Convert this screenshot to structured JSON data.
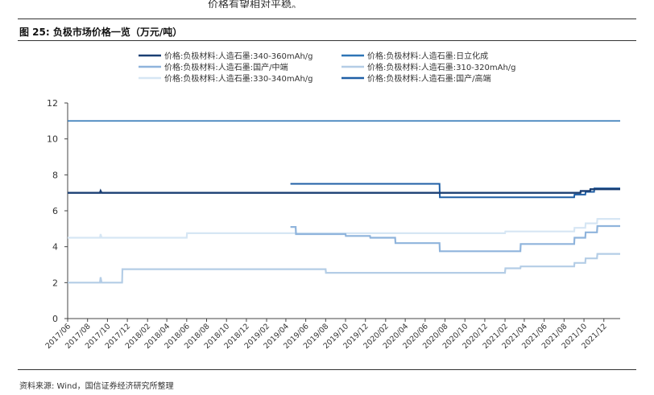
{
  "top_note": "价格有望相对平稳。",
  "figure_title": "图 25:  负极市场价格一览（万元/吨）",
  "source": "资料来源: Wind，国信证券经济研究所整理",
  "chart_data": {
    "type": "line",
    "title": "",
    "xlabel": "",
    "ylabel": "",
    "ylim": [
      0,
      12
    ],
    "yticks": [
      0,
      2,
      4,
      6,
      8,
      10,
      12
    ],
    "x_range": [
      "2017-06-01",
      "2022-01-20"
    ],
    "x_ticks": [
      "2017/06",
      "2017/08",
      "2017/10",
      "2017/12",
      "2018/02",
      "2018/04",
      "2018/06",
      "2018/08",
      "2018/10",
      "2018/12",
      "2019/02",
      "2019/04",
      "2019/06",
      "2019/08",
      "2019/10",
      "2019/12",
      "2020/02",
      "2020/04",
      "2020/06",
      "2020/08",
      "2020/10",
      "2020/12",
      "2021/02",
      "2021/04",
      "2021/06",
      "2021/08",
      "2021/10",
      "2021/12"
    ],
    "grid": false,
    "legend_position": "top",
    "series": [
      {
        "name": "价格:负极材料:人造石墨:340-360mAh/g",
        "color": "#1b3f73",
        "width": 2.4,
        "points": [
          [
            "2017-06-01",
            7.0
          ],
          [
            "2017-09-08",
            7.0
          ],
          [
            "2017-09-10",
            7.1
          ],
          [
            "2017-09-13",
            7.0
          ],
          [
            "2021-09-20",
            7.0
          ],
          [
            "2021-09-21",
            7.1
          ],
          [
            "2021-10-20",
            7.1
          ],
          [
            "2021-10-21",
            7.2
          ],
          [
            "2022-01-20",
            7.2
          ]
        ]
      },
      {
        "name": "价格:负极材料:人造石墨:日立化成",
        "color": "#2e75b6",
        "width": 1.6,
        "points": [
          [
            "2017-06-01",
            11.0
          ],
          [
            "2022-01-20",
            11.0
          ]
        ]
      },
      {
        "name": "价格:负极材料:人造石墨:国产/中端",
        "color": "#8fb4dc",
        "width": 2.2,
        "points": [
          [
            "2019-04-15",
            5.1
          ],
          [
            "2019-05-01",
            5.1
          ],
          [
            "2019-05-02",
            4.7
          ],
          [
            "2019-10-01",
            4.7
          ],
          [
            "2019-10-02",
            4.6
          ],
          [
            "2019-12-15",
            4.6
          ],
          [
            "2019-12-16",
            4.5
          ],
          [
            "2020-03-01",
            4.5
          ],
          [
            "2020-03-02",
            4.2
          ],
          [
            "2020-07-15",
            4.2
          ],
          [
            "2020-07-16",
            3.75
          ],
          [
            "2021-03-20",
            3.75
          ],
          [
            "2021-03-21",
            4.15
          ],
          [
            "2021-09-01",
            4.15
          ],
          [
            "2021-09-02",
            4.5
          ],
          [
            "2021-10-05",
            4.5
          ],
          [
            "2021-10-06",
            4.8
          ],
          [
            "2021-11-10",
            4.8
          ],
          [
            "2021-11-11",
            5.15
          ],
          [
            "2022-01-20",
            5.15
          ]
        ]
      },
      {
        "name": "价格:负极材料:人造石墨:310-320mAh/g",
        "color": "#b4cde6",
        "width": 2.2,
        "points": [
          [
            "2017-06-01",
            2.0
          ],
          [
            "2017-09-08",
            2.0
          ],
          [
            "2017-09-10",
            2.3
          ],
          [
            "2017-09-13",
            2.0
          ],
          [
            "2017-11-15",
            2.0
          ],
          [
            "2017-11-16",
            2.75
          ],
          [
            "2019-08-01",
            2.75
          ],
          [
            "2019-08-02",
            2.55
          ],
          [
            "2021-02-01",
            2.55
          ],
          [
            "2021-02-02",
            2.8
          ],
          [
            "2021-03-20",
            2.8
          ],
          [
            "2021-03-21",
            2.9
          ],
          [
            "2021-09-01",
            2.9
          ],
          [
            "2021-09-02",
            3.1
          ],
          [
            "2021-10-05",
            3.1
          ],
          [
            "2021-10-06",
            3.35
          ],
          [
            "2021-11-10",
            3.35
          ],
          [
            "2021-11-11",
            3.6
          ],
          [
            "2022-01-20",
            3.6
          ]
        ]
      },
      {
        "name": "价格:负极材料:人造石墨:330-340mAh/g",
        "color": "#d6e6f4",
        "width": 2.2,
        "points": [
          [
            "2017-06-01",
            4.5
          ],
          [
            "2017-09-08",
            4.5
          ],
          [
            "2017-09-10",
            4.7
          ],
          [
            "2017-09-13",
            4.5
          ],
          [
            "2018-06-01",
            4.5
          ],
          [
            "2018-06-02",
            4.75
          ],
          [
            "2021-02-01",
            4.75
          ],
          [
            "2021-02-02",
            4.85
          ],
          [
            "2021-09-01",
            4.85
          ],
          [
            "2021-09-02",
            5.05
          ],
          [
            "2021-10-05",
            5.05
          ],
          [
            "2021-10-06",
            5.3
          ],
          [
            "2021-11-10",
            5.3
          ],
          [
            "2021-11-11",
            5.55
          ],
          [
            "2022-01-20",
            5.55
          ]
        ]
      },
      {
        "name": "价格:负极材料:人造石墨:国产/高端",
        "color": "#1f5fa6",
        "width": 2.0,
        "points": [
          [
            "2019-04-15",
            7.5
          ],
          [
            "2020-07-15",
            7.5
          ],
          [
            "2020-07-16",
            6.75
          ],
          [
            "2021-09-01",
            6.75
          ],
          [
            "2021-09-02",
            6.9
          ],
          [
            "2021-10-05",
            6.9
          ],
          [
            "2021-10-06",
            7.05
          ],
          [
            "2021-11-01",
            7.05
          ],
          [
            "2021-11-02",
            7.25
          ],
          [
            "2022-01-20",
            7.25
          ]
        ]
      }
    ]
  }
}
